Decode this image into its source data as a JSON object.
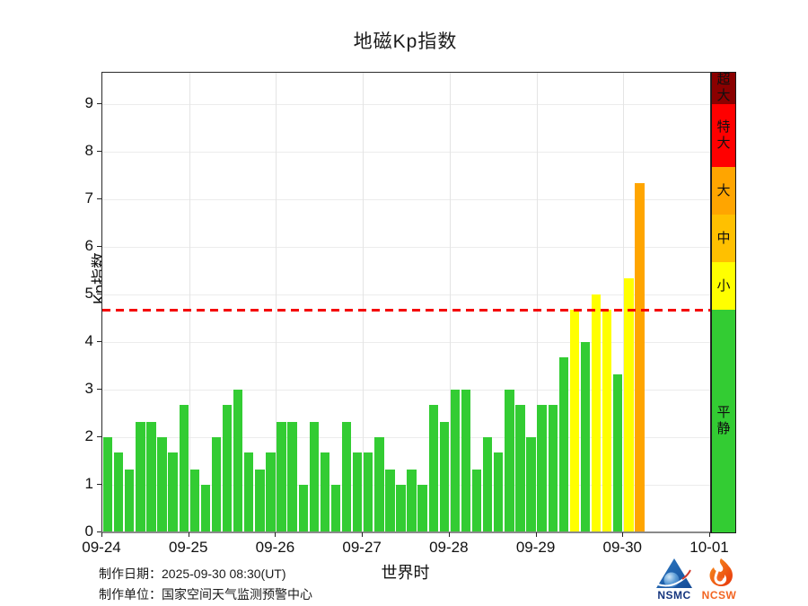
{
  "title": "地磁Kp指数",
  "chart_data": {
    "type": "bar",
    "title": "地磁Kp指数",
    "xlabel": "世界时",
    "ylabel": "Kp指数",
    "ylim": [
      0,
      9.66
    ],
    "yticks": [
      0,
      1,
      2,
      3,
      4,
      5,
      6,
      7,
      8,
      9
    ],
    "x_tick_labels": [
      "09-24",
      "09-25",
      "09-26",
      "09-27",
      "09-28",
      "09-29",
      "09-30",
      "10-01"
    ],
    "bars_per_day": 8,
    "grid": true,
    "legend_position": "right-colorbar",
    "threshold": {
      "value": 4.67,
      "color": "#f40000",
      "style": "dashed"
    },
    "days": [
      {
        "date": "09-24",
        "kp": [
          2.0,
          1.67,
          1.33,
          2.33,
          2.33,
          2.0,
          1.67,
          2.67
        ]
      },
      {
        "date": "09-25",
        "kp": [
          1.33,
          1.0,
          2.0,
          2.67,
          3.0,
          1.67,
          1.33,
          1.67
        ]
      },
      {
        "date": "09-26",
        "kp": [
          2.33,
          2.33,
          1.0,
          2.33,
          1.67,
          1.0,
          2.33,
          1.67
        ]
      },
      {
        "date": "09-27",
        "kp": [
          1.67,
          2.0,
          1.33,
          1.0,
          1.33,
          1.0,
          2.67,
          2.33
        ]
      },
      {
        "date": "09-28",
        "kp": [
          3.0,
          3.0,
          1.33,
          2.0,
          1.67,
          3.0,
          2.67,
          2.0
        ]
      },
      {
        "date": "09-29",
        "kp": [
          2.67,
          2.67,
          3.67,
          4.67,
          4.0,
          5.0,
          4.67,
          3.33
        ]
      },
      {
        "date": "09-30",
        "kp": [
          5.33,
          7.33
        ]
      }
    ],
    "color_levels": [
      {
        "label": "平静",
        "min": 0,
        "max": 4.67,
        "color": "#33cc33"
      },
      {
        "label": "小",
        "min": 4.67,
        "max": 5.67,
        "color": "#ffff00"
      },
      {
        "label": "中",
        "min": 5.67,
        "max": 6.67,
        "color": "#ffc000"
      },
      {
        "label": "大",
        "min": 6.67,
        "max": 7.67,
        "color": "#ffa500"
      },
      {
        "label": "特大",
        "min": 7.67,
        "max": 9.0,
        "color": "#ff0000"
      },
      {
        "label": "超大",
        "min": 9.0,
        "max": 9.66,
        "color": "#8b0000"
      }
    ]
  },
  "footer": {
    "made_date_label": "制作日期：",
    "made_date_value": "2025-09-30 08:30(UT)",
    "made_org_label": "制作单位：",
    "made_org_value": "国家空间天气监测预警中心"
  },
  "logos": {
    "nsmc": "NSMC",
    "ncsw": "NCSW"
  }
}
